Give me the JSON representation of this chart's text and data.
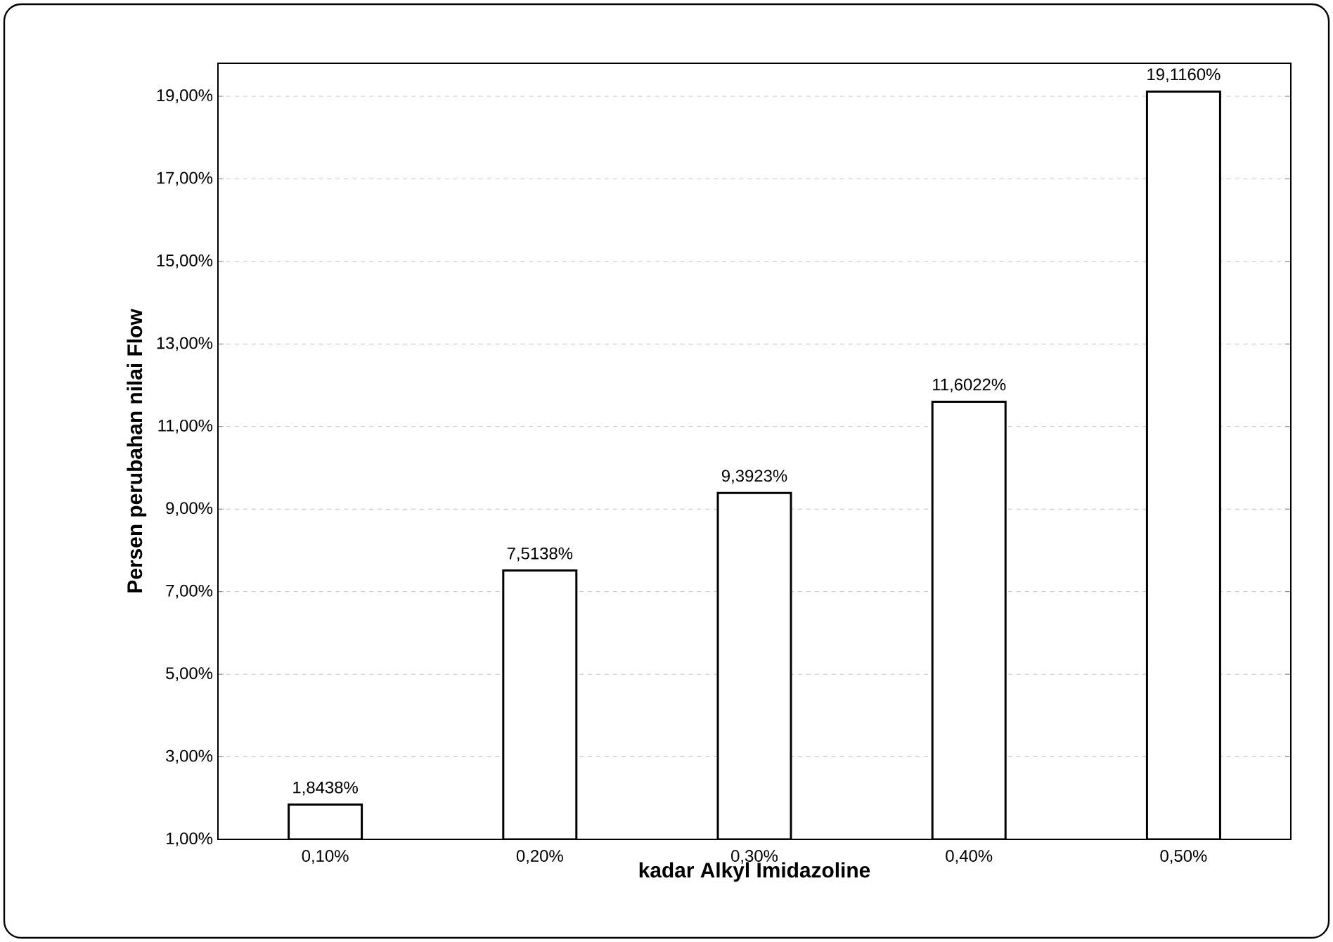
{
  "chart_data": {
    "type": "bar",
    "xlabel": "kadar Alkyl Imidazoline",
    "ylabel": "Persen perubahan nilai Flow",
    "categories": [
      "0,10%",
      "0,20%",
      "0,30%",
      "0,40%",
      "0,50%"
    ],
    "values": [
      1.8438,
      7.5138,
      9.3923,
      11.6022,
      19.116
    ],
    "value_labels": [
      "1,8438%",
      "7,5138%",
      "9,3923%",
      "11,6022%",
      "19,1160%"
    ],
    "color": "#ffffff",
    "ylim": [
      1,
      19.8
    ],
    "yticks": [
      {
        "value": 1,
        "label": "1,00%"
      },
      {
        "value": 3,
        "label": "3,00%"
      },
      {
        "value": 5,
        "label": "5,00%"
      },
      {
        "value": 7,
        "label": "7,00%"
      },
      {
        "value": 9,
        "label": "9,00%"
      },
      {
        "value": 11,
        "label": "11,00%"
      },
      {
        "value": 13,
        "label": "13,00%"
      },
      {
        "value": 15,
        "label": "15,00%"
      },
      {
        "value": 17,
        "label": "17,00%"
      },
      {
        "value": 19,
        "label": "19,00%"
      }
    ],
    "grid": "y"
  }
}
